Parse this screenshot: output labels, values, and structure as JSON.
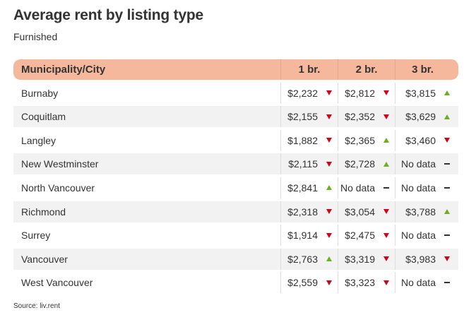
{
  "title": "Average rent by listing type",
  "subtitle": "Furnished",
  "source": "Source: liv.rent",
  "colors": {
    "header_bg": "#f6b89c",
    "up": "#6ab023",
    "down": "#d0021b",
    "alt_row": "#f2f2f2"
  },
  "chart_data": {
    "type": "table",
    "title": "Average rent by listing type",
    "subtitle": "Furnished",
    "columns": [
      "Municipality/City",
      "1 br.",
      "2 br.",
      "3 br."
    ],
    "rows": [
      {
        "city": "Burnaby",
        "cells": [
          {
            "value": "$2,232",
            "trend": "down"
          },
          {
            "value": "$2,812",
            "trend": "down"
          },
          {
            "value": "$3,815",
            "trend": "up"
          }
        ]
      },
      {
        "city": "Coquitlam",
        "cells": [
          {
            "value": "$2,155",
            "trend": "down"
          },
          {
            "value": "$2,352",
            "trend": "down"
          },
          {
            "value": "$3,629",
            "trend": "up"
          }
        ]
      },
      {
        "city": "Langley",
        "cells": [
          {
            "value": "$1,882",
            "trend": "down"
          },
          {
            "value": "$2,365",
            "trend": "up"
          },
          {
            "value": "$3,460",
            "trend": "down"
          }
        ]
      },
      {
        "city": "New Westminster",
        "cells": [
          {
            "value": "$2,115",
            "trend": "down"
          },
          {
            "value": "$2,728",
            "trend": "up"
          },
          {
            "value": "No data",
            "trend": "flat"
          }
        ]
      },
      {
        "city": "North Vancouver",
        "cells": [
          {
            "value": "$2,841",
            "trend": "up"
          },
          {
            "value": "No data",
            "trend": "flat"
          },
          {
            "value": "No data",
            "trend": "flat"
          }
        ]
      },
      {
        "city": "Richmond",
        "cells": [
          {
            "value": "$2,318",
            "trend": "down"
          },
          {
            "value": "$3,054",
            "trend": "down"
          },
          {
            "value": "$3,788",
            "trend": "up"
          }
        ]
      },
      {
        "city": "Surrey",
        "cells": [
          {
            "value": "$1,914",
            "trend": "down"
          },
          {
            "value": "$2,475",
            "trend": "down"
          },
          {
            "value": "No data",
            "trend": "flat"
          }
        ]
      },
      {
        "city": "Vancouver",
        "cells": [
          {
            "value": "$2,763",
            "trend": "up"
          },
          {
            "value": "$3,319",
            "trend": "down"
          },
          {
            "value": "$3,983",
            "trend": "down"
          }
        ]
      },
      {
        "city": "West Vancouver",
        "cells": [
          {
            "value": "$2,559",
            "trend": "down"
          },
          {
            "value": "$3,323",
            "trend": "down"
          },
          {
            "value": "No data",
            "trend": "flat"
          }
        ]
      }
    ]
  }
}
